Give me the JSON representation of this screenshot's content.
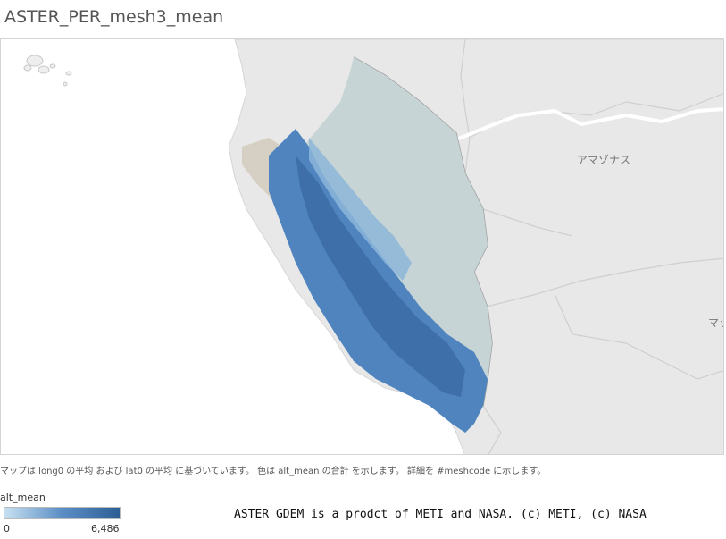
{
  "title": "ASTER_PER_mesh3_mean",
  "map": {
    "labels": {
      "amazonas": "アマゾナス",
      "edge_label": "マッ"
    }
  },
  "footnote": "マップは long0 の平均 および lat0 の平均 に基づいています。 色は alt_mean の合計 を示します。 詳細を #meshcode に示します。",
  "legend": {
    "title": "alt_mean",
    "min": "0",
    "max": "6,486",
    "color_low": "#c6e0f1",
    "color_high": "#2d5f95"
  },
  "credit": "ASTER GDEM is a prodct of METI and NASA. (c) METI, (c) NASA"
}
